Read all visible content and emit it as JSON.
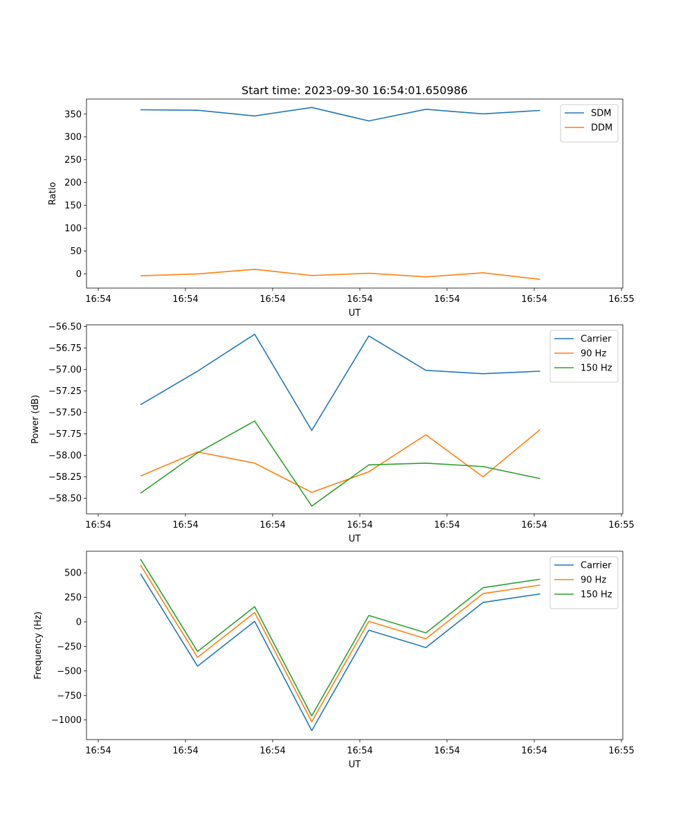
{
  "title": "Start time: 2023-09-30 16:54:01.650986",
  "x_tick_labels": [
    "16:54",
    "16:54",
    "16:54",
    "16:54",
    "16:54",
    "16:54",
    "16:55"
  ],
  "chart_data": [
    {
      "type": "line",
      "xlabel": "UT",
      "ylabel": "Ratio",
      "legend_position": "top-right",
      "x_sample_index": [
        0,
        1,
        2,
        3,
        4,
        5,
        6,
        7
      ],
      "ylim": [
        -31,
        383
      ],
      "yticks": [
        0,
        50,
        100,
        150,
        200,
        250,
        300,
        350
      ],
      "ytick_labels": [
        "0",
        "50",
        "100",
        "150",
        "200",
        "250",
        "300",
        "350"
      ],
      "series": [
        {
          "name": "SDM",
          "color": "#1f77b4",
          "values": [
            359.5,
            358.5,
            346,
            364.5,
            335,
            360.5,
            350.5,
            358
          ]
        },
        {
          "name": "DDM",
          "color": "#ff7f0e",
          "values": [
            -4,
            0,
            10,
            -3.5,
            1.5,
            -6.5,
            2.5,
            -12
          ]
        }
      ]
    },
    {
      "type": "line",
      "xlabel": "UT",
      "ylabel": "Power (dB)",
      "legend_position": "top-right",
      "x_sample_index": [
        0,
        1,
        2,
        3,
        4,
        5,
        6,
        7
      ],
      "ylim": [
        -58.68,
        -56.48
      ],
      "yticks": [
        -58.5,
        -58.25,
        -58.0,
        -57.75,
        -57.5,
        -57.25,
        -57.0,
        -56.75,
        -56.5
      ],
      "ytick_labels": [
        "−58.50",
        "−58.25",
        "−58.00",
        "−57.75",
        "−57.50",
        "−57.25",
        "−57.00",
        "−56.75",
        "−56.50"
      ],
      "series": [
        {
          "name": "Carrier",
          "color": "#1f77b4",
          "values": [
            -57.41,
            -57.02,
            -56.59,
            -57.71,
            -56.61,
            -57.01,
            -57.05,
            -57.02
          ]
        },
        {
          "name": "90 Hz",
          "color": "#ff7f0e",
          "values": [
            -58.24,
            -57.96,
            -58.09,
            -58.43,
            -58.19,
            -57.76,
            -58.25,
            -57.7
          ]
        },
        {
          "name": "150 Hz",
          "color": "#2ca02c",
          "values": [
            -58.44,
            -57.97,
            -57.6,
            -58.59,
            -58.11,
            -58.09,
            -58.13,
            -58.27
          ]
        }
      ]
    },
    {
      "type": "line",
      "xlabel": "UT",
      "ylabel": "Frequency (Hz)",
      "legend_position": "top-right",
      "x_sample_index": [
        0,
        1,
        2,
        3,
        4,
        5,
        6,
        7
      ],
      "ylim": [
        -1200,
        720
      ],
      "yticks": [
        -1000,
        -750,
        -500,
        -250,
        0,
        250,
        500
      ],
      "ytick_labels": [
        "−1000",
        "−750",
        "−500",
        "−250",
        "0",
        "250",
        "500"
      ],
      "series": [
        {
          "name": "Carrier",
          "color": "#1f77b4",
          "values": [
            490,
            -452,
            5,
            -1108,
            -85,
            -262,
            198,
            285
          ]
        },
        {
          "name": "90 Hz",
          "color": "#ff7f0e",
          "values": [
            580,
            -362,
            95,
            -1018,
            5,
            -172,
            288,
            375
          ]
        },
        {
          "name": "150 Hz",
          "color": "#2ca02c",
          "values": [
            640,
            -302,
            155,
            -958,
            65,
            -112,
            348,
            435
          ]
        }
      ]
    }
  ]
}
